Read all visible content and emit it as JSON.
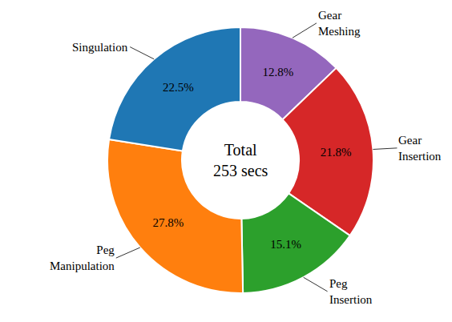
{
  "chart_data": {
    "type": "pie",
    "categories": [
      "Gear Meshing",
      "Gear Insertion",
      "Peg Insertion",
      "Peg Manipulation",
      "Singulation"
    ],
    "values": [
      12.8,
      21.8,
      15.1,
      27.8,
      22.5
    ],
    "value_labels": [
      "12.8%",
      "21.8%",
      "15.1%",
      "27.8%",
      "22.5%"
    ],
    "colors": [
      "#9467bd",
      "#d62728",
      "#2ca02c",
      "#ff7f0e",
      "#1f77b4"
    ],
    "center_text": [
      "Total",
      "253 secs"
    ],
    "data_labels": true
  }
}
